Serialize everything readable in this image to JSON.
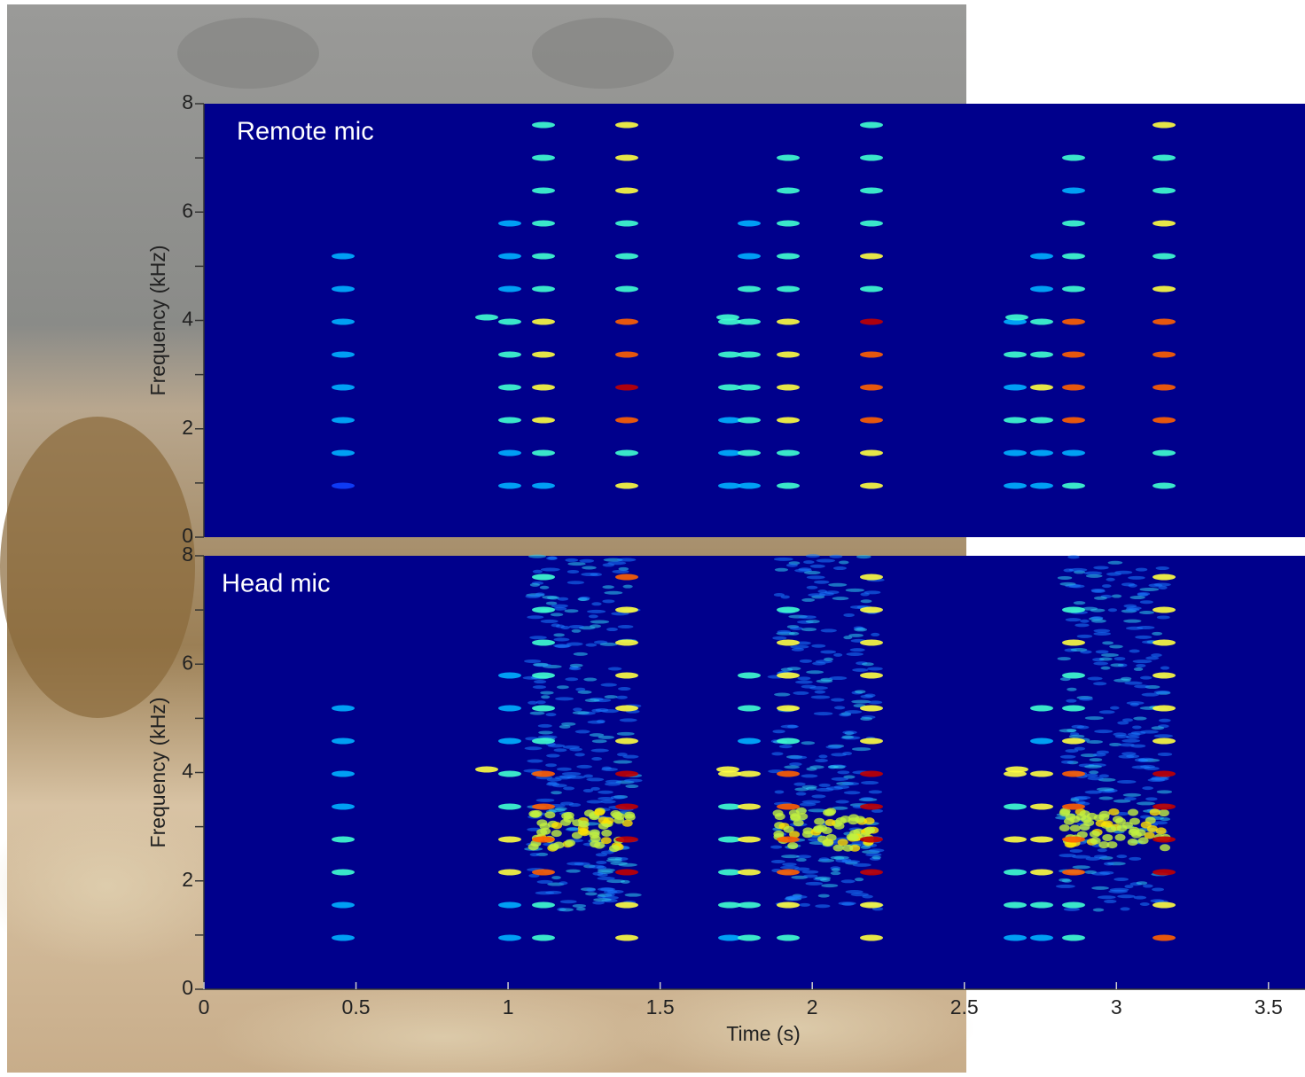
{
  "chart_data": [
    {
      "type": "spectrogram",
      "annotation": "Remote mic",
      "ylabel": "Frequency (kHz)",
      "xlim": [
        0,
        3.62
      ],
      "ylim": [
        0,
        8
      ],
      "yticks": [
        0,
        2,
        4,
        6,
        8
      ],
      "yminorticks": [
        1,
        3,
        5,
        7
      ]
    },
    {
      "type": "spectrogram",
      "annotation": "Head mic",
      "ylabel": "Frequency (kHz)",
      "xlabel": "Time (s)",
      "xlim": [
        0,
        3.62
      ],
      "xticks": [
        0,
        0.5,
        1,
        1.5,
        2,
        2.5,
        3,
        3.5
      ],
      "ylim": [
        0,
        8
      ],
      "yticks": [
        0,
        2,
        4,
        6,
        8
      ],
      "yminorticks": [
        1,
        3,
        5,
        7
      ]
    }
  ]
}
